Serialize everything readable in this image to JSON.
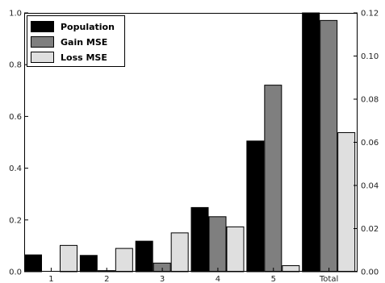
{
  "chart_data": {
    "type": "bar",
    "categories": [
      "1",
      "2",
      "3",
      "4",
      "5",
      "Total"
    ],
    "series": [
      {
        "name": "Population",
        "axis": "left",
        "color": "#000000",
        "values": [
          0.065,
          0.063,
          0.118,
          0.248,
          0.505,
          1.0
        ]
      },
      {
        "name": "Gain MSE",
        "axis": "right",
        "color": "#7f7f7f",
        "values": [
          0.0,
          0.0005,
          0.004,
          0.0255,
          0.0865,
          0.1165
        ]
      },
      {
        "name": "Loss MSE",
        "axis": "right",
        "color": "#dfdfdf",
        "values": [
          0.0122,
          0.0108,
          0.018,
          0.0208,
          0.0028,
          0.0645
        ]
      }
    ],
    "ylim_left": [
      0,
      1.0
    ],
    "ylim_right": [
      0,
      0.12
    ],
    "yticks_left": [
      "0.0",
      "0.2",
      "0.4",
      "0.6",
      "0.8",
      "1.0"
    ],
    "yticks_right": [
      "0.00",
      "0.02",
      "0.04",
      "0.06",
      "0.08",
      "0.10",
      "0.12"
    ],
    "legend_position": "top-left",
    "grid": false
  }
}
